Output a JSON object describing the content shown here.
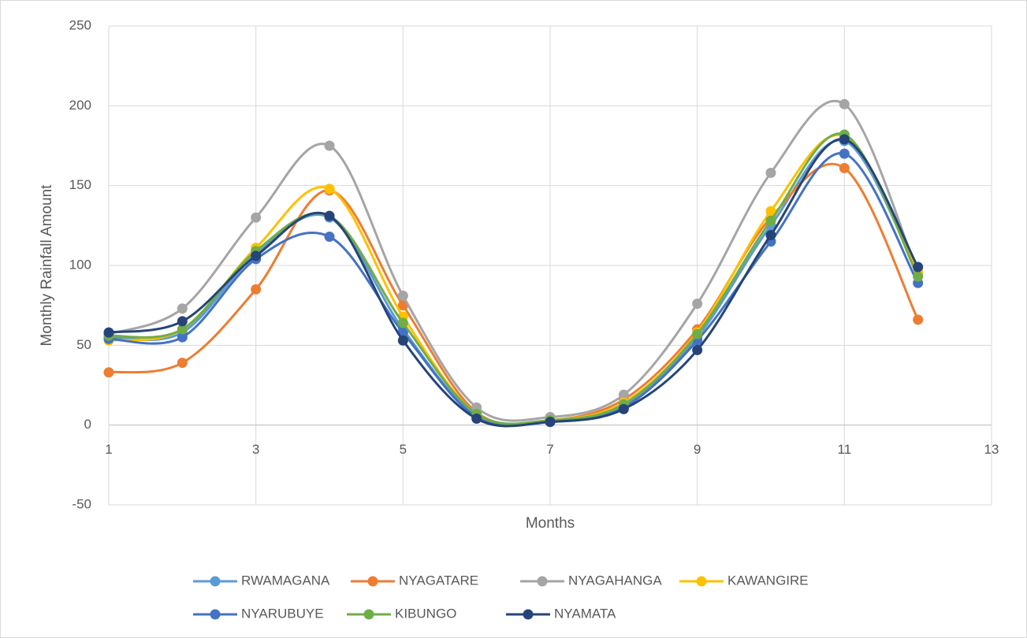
{
  "chart_data": {
    "type": "line",
    "smooth": true,
    "grid": true,
    "legend": "bottom",
    "x_label": "Months",
    "y_label": "Monthly Rainfall Amount",
    "x": [
      1,
      2,
      3,
      4,
      5,
      6,
      7,
      8,
      9,
      10,
      11,
      12
    ],
    "xlim": [
      1,
      13
    ],
    "xticks": [
      1,
      3,
      5,
      7,
      9,
      11,
      13
    ],
    "ylim": [
      -50,
      250
    ],
    "yticks": [
      -50,
      0,
      50,
      100,
      150,
      200,
      250
    ],
    "series": [
      {
        "name": "RWAMAGANA",
        "color": "#5B9BD5",
        "values": [
          55,
          58,
          107,
          130,
          60,
          6,
          3,
          12,
          55,
          125,
          178,
          95
        ]
      },
      {
        "name": "NYAGATARE",
        "color": "#ED7D31",
        "values": [
          33,
          39,
          85,
          147,
          75,
          8,
          3,
          16,
          60,
          130,
          161,
          66
        ]
      },
      {
        "name": "NYAGAHANGA",
        "color": "#A5A5A5",
        "values": [
          57,
          73,
          130,
          175,
          81,
          11,
          5,
          19,
          76,
          158,
          201,
          95
        ]
      },
      {
        "name": "KAWANGIRE",
        "color": "#FFC000",
        "values": [
          53,
          60,
          111,
          148,
          68,
          7,
          3,
          14,
          58,
          134,
          181,
          96
        ]
      },
      {
        "name": "NYARUBUYE",
        "color": "#4472C4",
        "values": [
          54,
          55,
          104,
          118,
          58,
          5,
          2,
          11,
          53,
          115,
          170,
          89
        ]
      },
      {
        "name": "KIBUNGO",
        "color": "#70AD47",
        "values": [
          56,
          60,
          109,
          131,
          64,
          7,
          3,
          13,
          57,
          128,
          182,
          93
        ]
      },
      {
        "name": "NYAMATA",
        "color": "#264478",
        "values": [
          58,
          65,
          106,
          131,
          53,
          4,
          2,
          10,
          47,
          119,
          179,
          99
        ]
      }
    ]
  }
}
